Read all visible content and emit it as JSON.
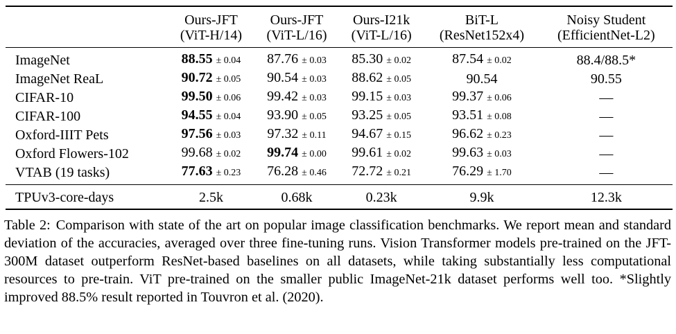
{
  "table": {
    "headers": [
      {
        "line1": "",
        "line2": ""
      },
      {
        "line1": "Ours-JFT",
        "line2": "(ViT-H/14)"
      },
      {
        "line1": "Ours-JFT",
        "line2": "(ViT-L/16)"
      },
      {
        "line1": "Ours-I21k",
        "line2": "(ViT-L/16)"
      },
      {
        "line1": "BiT-L",
        "line2": "(ResNet152x4)"
      },
      {
        "line1": "Noisy Student",
        "line2": "(EfficientNet-L2)"
      }
    ],
    "rows": [
      {
        "dataset": "ImageNet",
        "cells": [
          {
            "v": "88.55",
            "pm": "± 0.04",
            "best": true
          },
          {
            "v": "87.76",
            "pm": "± 0.03"
          },
          {
            "v": "85.30",
            "pm": "± 0.02"
          },
          {
            "v": "87.54",
            "pm": "± 0.02"
          },
          {
            "v": "88.4/88.5*",
            "pm": ""
          }
        ]
      },
      {
        "dataset": "ImageNet ReaL",
        "cells": [
          {
            "v": "90.72",
            "pm": "± 0.05",
            "best": true
          },
          {
            "v": "90.54",
            "pm": "± 0.03"
          },
          {
            "v": "88.62",
            "pm": "± 0.05"
          },
          {
            "v": "90.54",
            "pm": ""
          },
          {
            "v": "90.55",
            "pm": ""
          }
        ]
      },
      {
        "dataset": "CIFAR-10",
        "cells": [
          {
            "v": "99.50",
            "pm": "± 0.06",
            "best": true
          },
          {
            "v": "99.42",
            "pm": "± 0.03"
          },
          {
            "v": "99.15",
            "pm": "± 0.03"
          },
          {
            "v": "99.37",
            "pm": "± 0.06"
          },
          {
            "v": "—",
            "pm": ""
          }
        ]
      },
      {
        "dataset": "CIFAR-100",
        "cells": [
          {
            "v": "94.55",
            "pm": "± 0.04",
            "best": true
          },
          {
            "v": "93.90",
            "pm": "± 0.05"
          },
          {
            "v": "93.25",
            "pm": "± 0.05"
          },
          {
            "v": "93.51",
            "pm": "± 0.08"
          },
          {
            "v": "—",
            "pm": ""
          }
        ]
      },
      {
        "dataset": "Oxford-IIIT Pets",
        "cells": [
          {
            "v": "97.56",
            "pm": "± 0.03",
            "best": true
          },
          {
            "v": "97.32",
            "pm": "± 0.11"
          },
          {
            "v": "94.67",
            "pm": "± 0.15"
          },
          {
            "v": "96.62",
            "pm": "± 0.23"
          },
          {
            "v": "—",
            "pm": ""
          }
        ]
      },
      {
        "dataset": "Oxford Flowers-102",
        "cells": [
          {
            "v": "99.68",
            "pm": "± 0.02"
          },
          {
            "v": "99.74",
            "pm": "± 0.00",
            "best": true
          },
          {
            "v": "99.61",
            "pm": "± 0.02"
          },
          {
            "v": "99.63",
            "pm": "± 0.03"
          },
          {
            "v": "—",
            "pm": ""
          }
        ]
      },
      {
        "dataset": "VTAB (19 tasks)",
        "cells": [
          {
            "v": "77.63",
            "pm": "± 0.23",
            "best": true
          },
          {
            "v": "76.28",
            "pm": "± 0.46"
          },
          {
            "v": "72.72",
            "pm": "± 0.21"
          },
          {
            "v": "76.29",
            "pm": "± 1.70"
          },
          {
            "v": "—",
            "pm": ""
          }
        ]
      }
    ],
    "compute_row": {
      "label": "TPUv3-core-days",
      "values": [
        "2.5k",
        "0.68k",
        "0.23k",
        "9.9k",
        "12.3k"
      ]
    }
  },
  "caption": {
    "label": "Table 2:",
    "text": "Comparison with state of the art on popular image classification benchmarks. We report mean and standard deviation of the accuracies, averaged over three fine-tuning runs. Vision Transformer models pre-trained on the JFT-300M dataset outperform ResNet-based baselines on all datasets, while taking substantially less computational resources to pre-train. ViT pre-trained on the smaller public ImageNet-21k dataset performs well too. *Slightly improved 88.5% result reported in Touvron et al. (2020)."
  }
}
